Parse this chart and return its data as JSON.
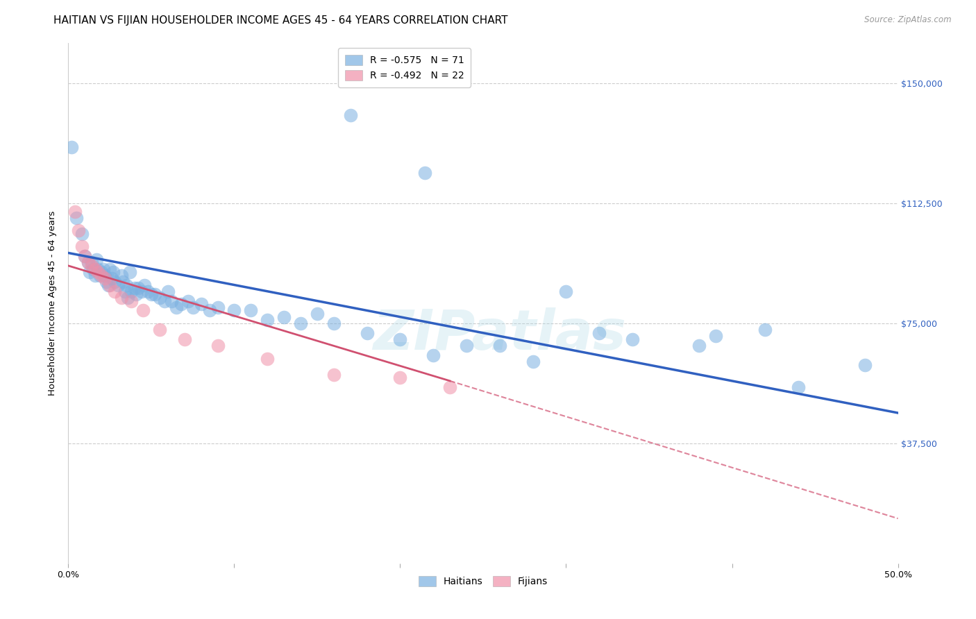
{
  "title": "HAITIAN VS FIJIAN HOUSEHOLDER INCOME AGES 45 - 64 YEARS CORRELATION CHART",
  "source": "Source: ZipAtlas.com",
  "ylabel": "Householder Income Ages 45 - 64 years",
  "xlim": [
    0.0,
    0.5
  ],
  "ylim": [
    0,
    162500
  ],
  "yticks": [
    37500,
    75000,
    112500,
    150000
  ],
  "ytick_labels": [
    "$37,500",
    "$75,000",
    "$112,500",
    "$150,000"
  ],
  "xticks": [
    0.0,
    0.1,
    0.2,
    0.3,
    0.4,
    0.5
  ],
  "xtick_labels_show": [
    "0.0%",
    "",
    "",
    "",
    "",
    "50.0%"
  ],
  "legend_entries": [
    {
      "label": "R = -0.575   N = 71",
      "color": "#a8c4e8"
    },
    {
      "label": "R = -0.492   N = 22",
      "color": "#f0a8be"
    }
  ],
  "watermark": "ZIPatlas",
  "haitian_color": "#7ab0e0",
  "fijian_color": "#f090a8",
  "haitian_line_color": "#3060c0",
  "fijian_line_color": "#d05070",
  "haitian_points": [
    [
      0.002,
      130000
    ],
    [
      0.005,
      108000
    ],
    [
      0.008,
      103000
    ],
    [
      0.01,
      96000
    ],
    [
      0.012,
      94000
    ],
    [
      0.013,
      91000
    ],
    [
      0.014,
      94000
    ],
    [
      0.015,
      92000
    ],
    [
      0.016,
      90000
    ],
    [
      0.017,
      95000
    ],
    [
      0.018,
      92000
    ],
    [
      0.019,
      90000
    ],
    [
      0.02,
      91000
    ],
    [
      0.021,
      92000
    ],
    [
      0.022,
      90000
    ],
    [
      0.023,
      88000
    ],
    [
      0.024,
      87000
    ],
    [
      0.025,
      92000
    ],
    [
      0.026,
      89000
    ],
    [
      0.027,
      91000
    ],
    [
      0.028,
      88000
    ],
    [
      0.03,
      87000
    ],
    [
      0.032,
      90000
    ],
    [
      0.033,
      88000
    ],
    [
      0.034,
      85000
    ],
    [
      0.035,
      87000
    ],
    [
      0.036,
      83000
    ],
    [
      0.037,
      91000
    ],
    [
      0.038,
      85000
    ],
    [
      0.04,
      86000
    ],
    [
      0.041,
      84000
    ],
    [
      0.042,
      86000
    ],
    [
      0.044,
      85000
    ],
    [
      0.046,
      87000
    ],
    [
      0.048,
      85000
    ],
    [
      0.05,
      84000
    ],
    [
      0.052,
      84000
    ],
    [
      0.055,
      83000
    ],
    [
      0.058,
      82000
    ],
    [
      0.06,
      85000
    ],
    [
      0.062,
      82000
    ],
    [
      0.065,
      80000
    ],
    [
      0.068,
      81000
    ],
    [
      0.072,
      82000
    ],
    [
      0.075,
      80000
    ],
    [
      0.08,
      81000
    ],
    [
      0.085,
      79000
    ],
    [
      0.09,
      80000
    ],
    [
      0.1,
      79000
    ],
    [
      0.11,
      79000
    ],
    [
      0.12,
      76000
    ],
    [
      0.13,
      77000
    ],
    [
      0.14,
      75000
    ],
    [
      0.15,
      78000
    ],
    [
      0.16,
      75000
    ],
    [
      0.18,
      72000
    ],
    [
      0.2,
      70000
    ],
    [
      0.22,
      65000
    ],
    [
      0.24,
      68000
    ],
    [
      0.26,
      68000
    ],
    [
      0.28,
      63000
    ],
    [
      0.3,
      85000
    ],
    [
      0.32,
      72000
    ],
    [
      0.34,
      70000
    ],
    [
      0.38,
      68000
    ],
    [
      0.39,
      71000
    ],
    [
      0.42,
      73000
    ],
    [
      0.44,
      55000
    ],
    [
      0.48,
      62000
    ],
    [
      0.17,
      140000
    ],
    [
      0.215,
      122000
    ]
  ],
  "fijian_points": [
    [
      0.004,
      110000
    ],
    [
      0.006,
      104000
    ],
    [
      0.008,
      99000
    ],
    [
      0.01,
      96000
    ],
    [
      0.012,
      94000
    ],
    [
      0.014,
      93000
    ],
    [
      0.016,
      92000
    ],
    [
      0.018,
      91000
    ],
    [
      0.02,
      90000
    ],
    [
      0.022,
      89000
    ],
    [
      0.025,
      87000
    ],
    [
      0.028,
      85000
    ],
    [
      0.032,
      83000
    ],
    [
      0.038,
      82000
    ],
    [
      0.045,
      79000
    ],
    [
      0.055,
      73000
    ],
    [
      0.07,
      70000
    ],
    [
      0.09,
      68000
    ],
    [
      0.12,
      64000
    ],
    [
      0.16,
      59000
    ],
    [
      0.2,
      58000
    ],
    [
      0.23,
      55000
    ]
  ],
  "haitian_line": {
    "x0": 0.0,
    "y0": 97000,
    "x1": 0.5,
    "y1": 47000
  },
  "fijian_line_solid": {
    "x0": 0.0,
    "y0": 93000,
    "x1": 0.23,
    "y1": 57000
  },
  "fijian_line_dash": {
    "x0": 0.23,
    "y0": 57000,
    "x1": 0.5,
    "y1": 14000
  },
  "background_color": "#ffffff",
  "grid_color": "#cccccc",
  "title_fontsize": 11,
  "axis_label_fontsize": 9.5,
  "tick_label_fontsize": 9,
  "legend_fontsize": 10
}
